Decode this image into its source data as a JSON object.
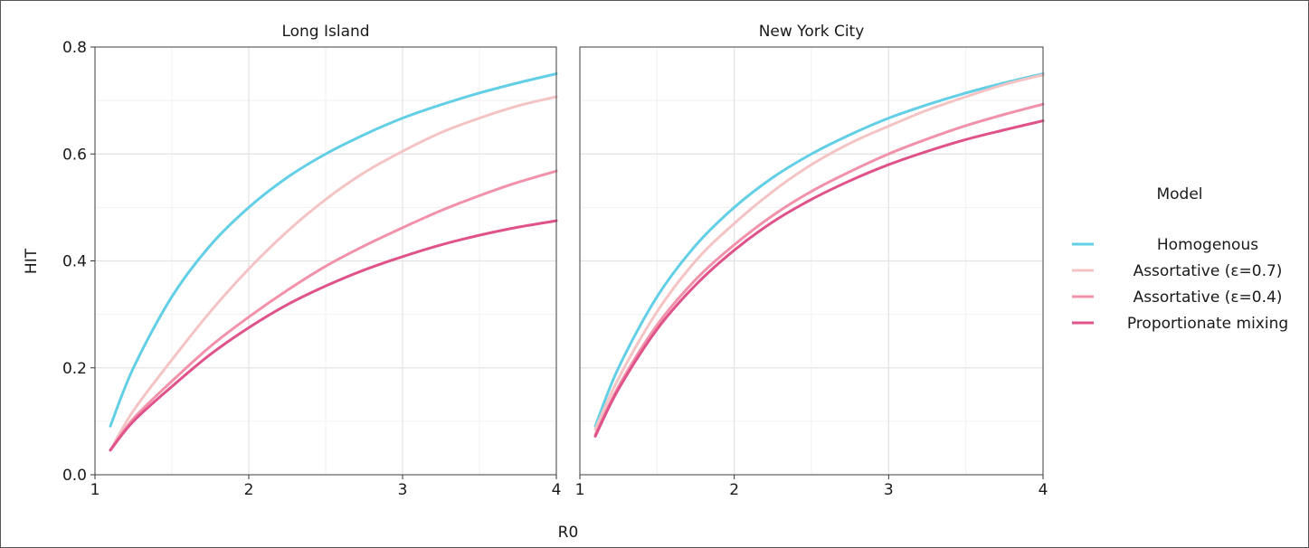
{
  "chart_data": {
    "type": "line",
    "xlabel": "R0",
    "ylabel": "HIT",
    "xlim": [
      1,
      4
    ],
    "ylim": [
      0,
      0.8
    ],
    "x_ticks": [
      "1",
      "2",
      "3",
      "4"
    ],
    "y_ticks": [
      "0.0",
      "0.2",
      "0.4",
      "0.6",
      "0.8"
    ],
    "grid": true,
    "legend": {
      "title": "Model",
      "placement": "right",
      "entries": [
        "Homogenous",
        "Assortative (ε=0.7)",
        "Assortative (ε=0.4)",
        "Proportionate mixing"
      ]
    },
    "series_styles": [
      {
        "name": "Homogenous",
        "color": "#62cfe6"
      },
      {
        "name": "Assortative (ε=0.7)",
        "color": "#f4c4c4"
      },
      {
        "name": "Assortative (ε=0.4)",
        "color": "#f291aa"
      },
      {
        "name": "Proportionate mixing",
        "color": "#e0528a"
      }
    ],
    "facets": [
      {
        "title": "Long Island",
        "x": [
          1.1,
          1.25,
          1.5,
          1.75,
          2.0,
          2.25,
          2.5,
          2.75,
          3.0,
          3.25,
          3.5,
          3.75,
          4.0
        ],
        "series": [
          {
            "name": "Homogenous",
            "values": [
              0.091,
              0.2,
              0.333,
              0.429,
              0.5,
              0.556,
              0.6,
              0.636,
              0.667,
              0.692,
              0.714,
              0.733,
              0.75
            ]
          },
          {
            "name": "Assortative (ε=0.7)",
            "values": [
              0.046,
              0.12,
              0.215,
              0.305,
              0.385,
              0.455,
              0.515,
              0.565,
              0.605,
              0.64,
              0.667,
              0.69,
              0.707
            ]
          },
          {
            "name": "Assortative (ε=0.4)",
            "values": [
              0.046,
              0.105,
              0.175,
              0.24,
              0.295,
              0.345,
              0.39,
              0.428,
              0.462,
              0.494,
              0.522,
              0.547,
              0.568
            ]
          },
          {
            "name": "Proportionate mixing",
            "values": [
              0.046,
              0.1,
              0.165,
              0.225,
              0.275,
              0.318,
              0.353,
              0.383,
              0.408,
              0.43,
              0.448,
              0.463,
              0.475
            ]
          }
        ]
      },
      {
        "title": "New York City",
        "x": [
          1.1,
          1.25,
          1.5,
          1.75,
          2.0,
          2.25,
          2.5,
          2.75,
          3.0,
          3.25,
          3.5,
          3.75,
          4.0
        ],
        "series": [
          {
            "name": "Homogenous",
            "values": [
              0.091,
              0.2,
              0.333,
              0.429,
              0.5,
              0.556,
              0.6,
              0.636,
              0.667,
              0.692,
              0.714,
              0.733,
              0.75
            ]
          },
          {
            "name": "Assortative (ε=0.7)",
            "values": [
              0.085,
              0.18,
              0.305,
              0.4,
              0.47,
              0.53,
              0.58,
              0.62,
              0.652,
              0.682,
              0.707,
              0.73,
              0.748
            ]
          },
          {
            "name": "Assortative (ε=0.4)",
            "values": [
              0.075,
              0.165,
              0.28,
              0.365,
              0.43,
              0.485,
              0.53,
              0.567,
              0.6,
              0.628,
              0.653,
              0.674,
              0.693
            ]
          },
          {
            "name": "Proportionate mixing",
            "values": [
              0.072,
              0.16,
              0.272,
              0.355,
              0.42,
              0.473,
              0.515,
              0.55,
              0.58,
              0.605,
              0.627,
              0.645,
              0.662
            ]
          }
        ]
      }
    ]
  }
}
